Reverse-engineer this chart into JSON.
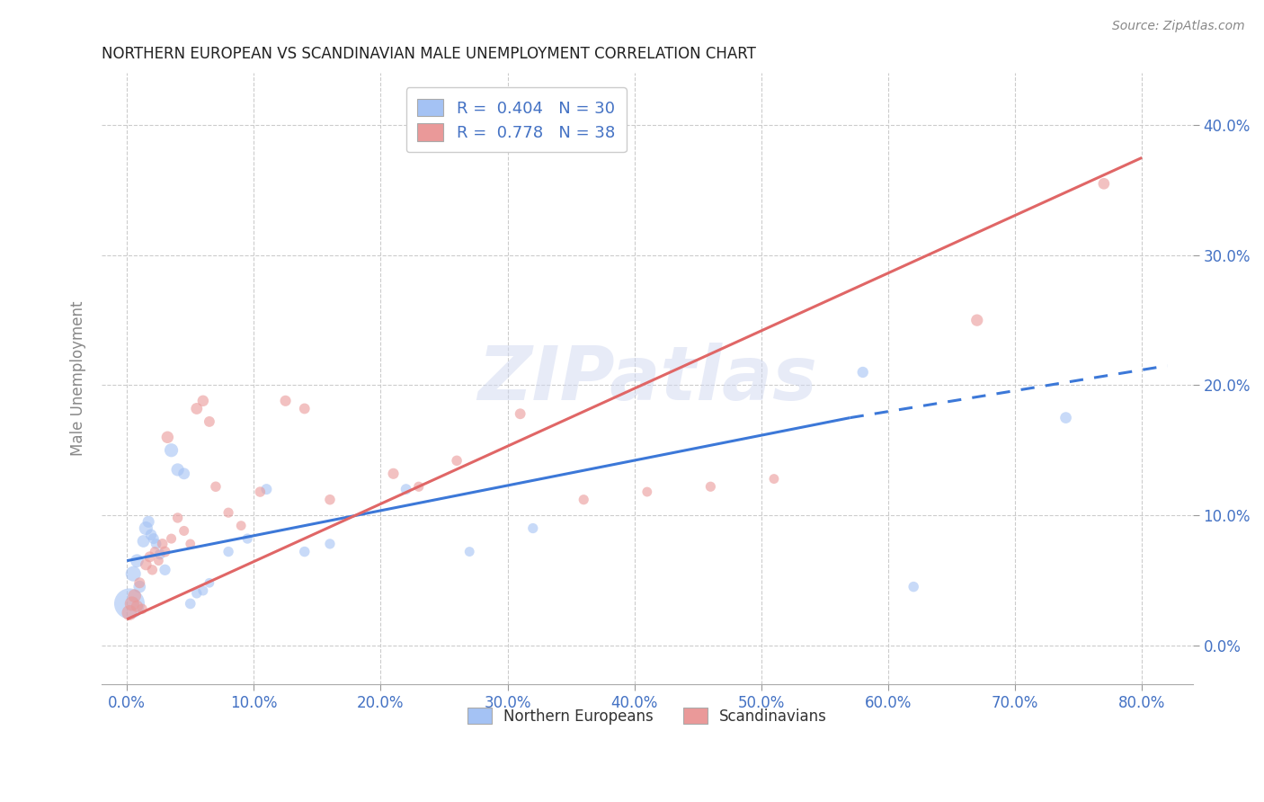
{
  "title": "NORTHERN EUROPEAN VS SCANDINAVIAN MALE UNEMPLOYMENT CORRELATION CHART",
  "source": "Source: ZipAtlas.com",
  "tick_color": "#4472c4",
  "ylabel": "Male Unemployment",
  "x_ticks": [
    0,
    10,
    20,
    30,
    40,
    50,
    60,
    70,
    80
  ],
  "y_ticks": [
    0,
    10,
    20,
    30,
    40
  ],
  "xlim": [
    -2,
    84
  ],
  "ylim": [
    -3,
    44
  ],
  "blue_R": 0.404,
  "blue_N": 30,
  "pink_R": 0.778,
  "pink_N": 38,
  "blue_color": "#a4c2f4",
  "pink_color": "#ea9999",
  "blue_line_color": "#3c78d8",
  "pink_line_color": "#e06666",
  "watermark": "ZIPatlas",
  "blue_points": [
    [
      0.2,
      3.2,
      800
    ],
    [
      0.5,
      5.5,
      200
    ],
    [
      0.8,
      6.5,
      150
    ],
    [
      1.0,
      4.5,
      130
    ],
    [
      1.3,
      8.0,
      130
    ],
    [
      1.5,
      9.0,
      160
    ],
    [
      1.7,
      9.5,
      120
    ],
    [
      1.9,
      8.5,
      110
    ],
    [
      2.1,
      8.2,
      100
    ],
    [
      2.3,
      7.8,
      95
    ],
    [
      2.6,
      7.0,
      100
    ],
    [
      3.0,
      5.8,
      105
    ],
    [
      3.5,
      15.0,
      160
    ],
    [
      4.0,
      13.5,
      140
    ],
    [
      4.5,
      13.2,
      115
    ],
    [
      5.0,
      3.2,
      95
    ],
    [
      5.5,
      4.0,
      90
    ],
    [
      6.0,
      4.2,
      85
    ],
    [
      6.5,
      4.8,
      80
    ],
    [
      8.0,
      7.2,
      90
    ],
    [
      9.5,
      8.2,
      88
    ],
    [
      11.0,
      12.0,
      100
    ],
    [
      14.0,
      7.2,
      92
    ],
    [
      16.0,
      7.8,
      88
    ],
    [
      22.0,
      12.0,
      98
    ],
    [
      27.0,
      7.2,
      82
    ],
    [
      32.0,
      9.0,
      88
    ],
    [
      58.0,
      21.0,
      105
    ],
    [
      62.0,
      4.5,
      92
    ],
    [
      74.0,
      17.5,
      112
    ]
  ],
  "pink_points": [
    [
      0.2,
      2.5,
      200
    ],
    [
      0.4,
      3.2,
      180
    ],
    [
      0.6,
      3.8,
      150
    ],
    [
      0.8,
      3.0,
      120
    ],
    [
      1.0,
      4.8,
      100
    ],
    [
      1.2,
      2.8,
      90
    ],
    [
      1.5,
      6.2,
      110
    ],
    [
      1.8,
      6.8,
      100
    ],
    [
      2.0,
      5.8,
      90
    ],
    [
      2.2,
      7.2,
      85
    ],
    [
      2.5,
      6.5,
      80
    ],
    [
      2.8,
      7.8,
      95
    ],
    [
      3.0,
      7.2,
      100
    ],
    [
      3.2,
      16.0,
      125
    ],
    [
      3.5,
      8.2,
      85
    ],
    [
      4.0,
      9.8,
      90
    ],
    [
      4.5,
      8.8,
      85
    ],
    [
      5.0,
      7.8,
      80
    ],
    [
      5.5,
      18.2,
      115
    ],
    [
      6.0,
      18.8,
      108
    ],
    [
      6.5,
      17.2,
      98
    ],
    [
      7.0,
      12.2,
      92
    ],
    [
      8.0,
      10.2,
      87
    ],
    [
      9.0,
      9.2,
      82
    ],
    [
      10.5,
      11.8,
      92
    ],
    [
      12.5,
      18.8,
      102
    ],
    [
      14.0,
      18.2,
      97
    ],
    [
      16.0,
      11.2,
      92
    ],
    [
      21.0,
      13.2,
      102
    ],
    [
      23.0,
      12.2,
      87
    ],
    [
      26.0,
      14.2,
      92
    ],
    [
      31.0,
      17.8,
      97
    ],
    [
      36.0,
      11.2,
      87
    ],
    [
      41.0,
      11.8,
      82
    ],
    [
      46.0,
      12.2,
      87
    ],
    [
      51.0,
      12.8,
      82
    ],
    [
      67.0,
      25.0,
      122
    ],
    [
      77.0,
      35.5,
      112
    ]
  ],
  "blue_line_solid": {
    "x0": 0,
    "y0": 6.5,
    "x1": 57,
    "y1": 17.5
  },
  "blue_line_dash": {
    "x0": 57,
    "y0": 17.5,
    "x1": 82,
    "y1": 21.5
  },
  "pink_line": {
    "x0": 0,
    "y0": 2.0,
    "x1": 80,
    "y1": 37.5
  },
  "legend_blue_label": "R = 0.404   N = 30",
  "legend_pink_label": "R = 0.778   N = 38",
  "bottom_legend_blue": "Northern Europeans",
  "bottom_legend_pink": "Scandinavians"
}
